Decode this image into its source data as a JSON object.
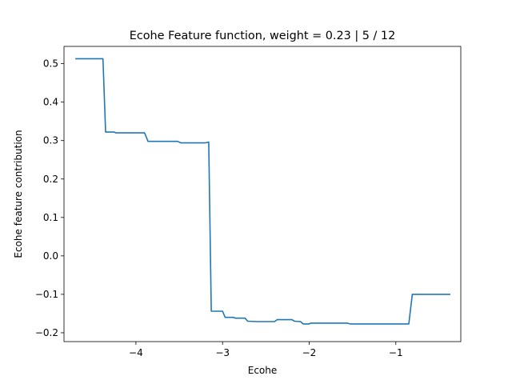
{
  "chart_data": {
    "type": "line",
    "title": "Ecohe Feature function, weight = 0.23 | 5 / 12",
    "xlabel": "Ecohe",
    "ylabel": "Ecohe feature contribution",
    "xlim": [
      -4.83,
      -0.25
    ],
    "ylim": [
      -0.223,
      0.545
    ],
    "xticks": [
      -4,
      -3,
      -2,
      -1
    ],
    "xtick_labels": [
      "−4",
      "−3",
      "−2",
      "−1"
    ],
    "yticks": [
      -0.2,
      -0.1,
      0.0,
      0.1,
      0.2,
      0.3,
      0.4,
      0.5
    ],
    "ytick_labels": [
      "−0.2",
      "−0.1",
      "0.0",
      "0.1",
      "0.2",
      "0.3",
      "0.4",
      "0.5"
    ],
    "grid": false,
    "line_color": "#1f77b4",
    "series": [
      {
        "x": [
          -4.7,
          -4.38,
          -4.35,
          -4.25,
          -4.23,
          -3.9,
          -3.86,
          -3.52,
          -3.48,
          -3.2,
          -3.16,
          -3.13,
          -3.0,
          -2.97,
          -2.88,
          -2.85,
          -2.74,
          -2.71,
          -2.6,
          -2.4,
          -2.37,
          -2.2,
          -2.17,
          -2.1,
          -2.07,
          -2.0,
          -1.98,
          -1.56,
          -1.53,
          -1.4,
          -0.85,
          -0.81,
          -0.37
        ],
        "y": [
          0.513,
          0.513,
          0.322,
          0.322,
          0.32,
          0.32,
          0.298,
          0.298,
          0.294,
          0.294,
          0.296,
          -0.144,
          -0.144,
          -0.16,
          -0.16,
          -0.162,
          -0.162,
          -0.17,
          -0.171,
          -0.171,
          -0.166,
          -0.166,
          -0.17,
          -0.171,
          -0.177,
          -0.177,
          -0.175,
          -0.175,
          -0.177,
          -0.177,
          -0.177,
          -0.1,
          -0.1
        ]
      }
    ]
  }
}
